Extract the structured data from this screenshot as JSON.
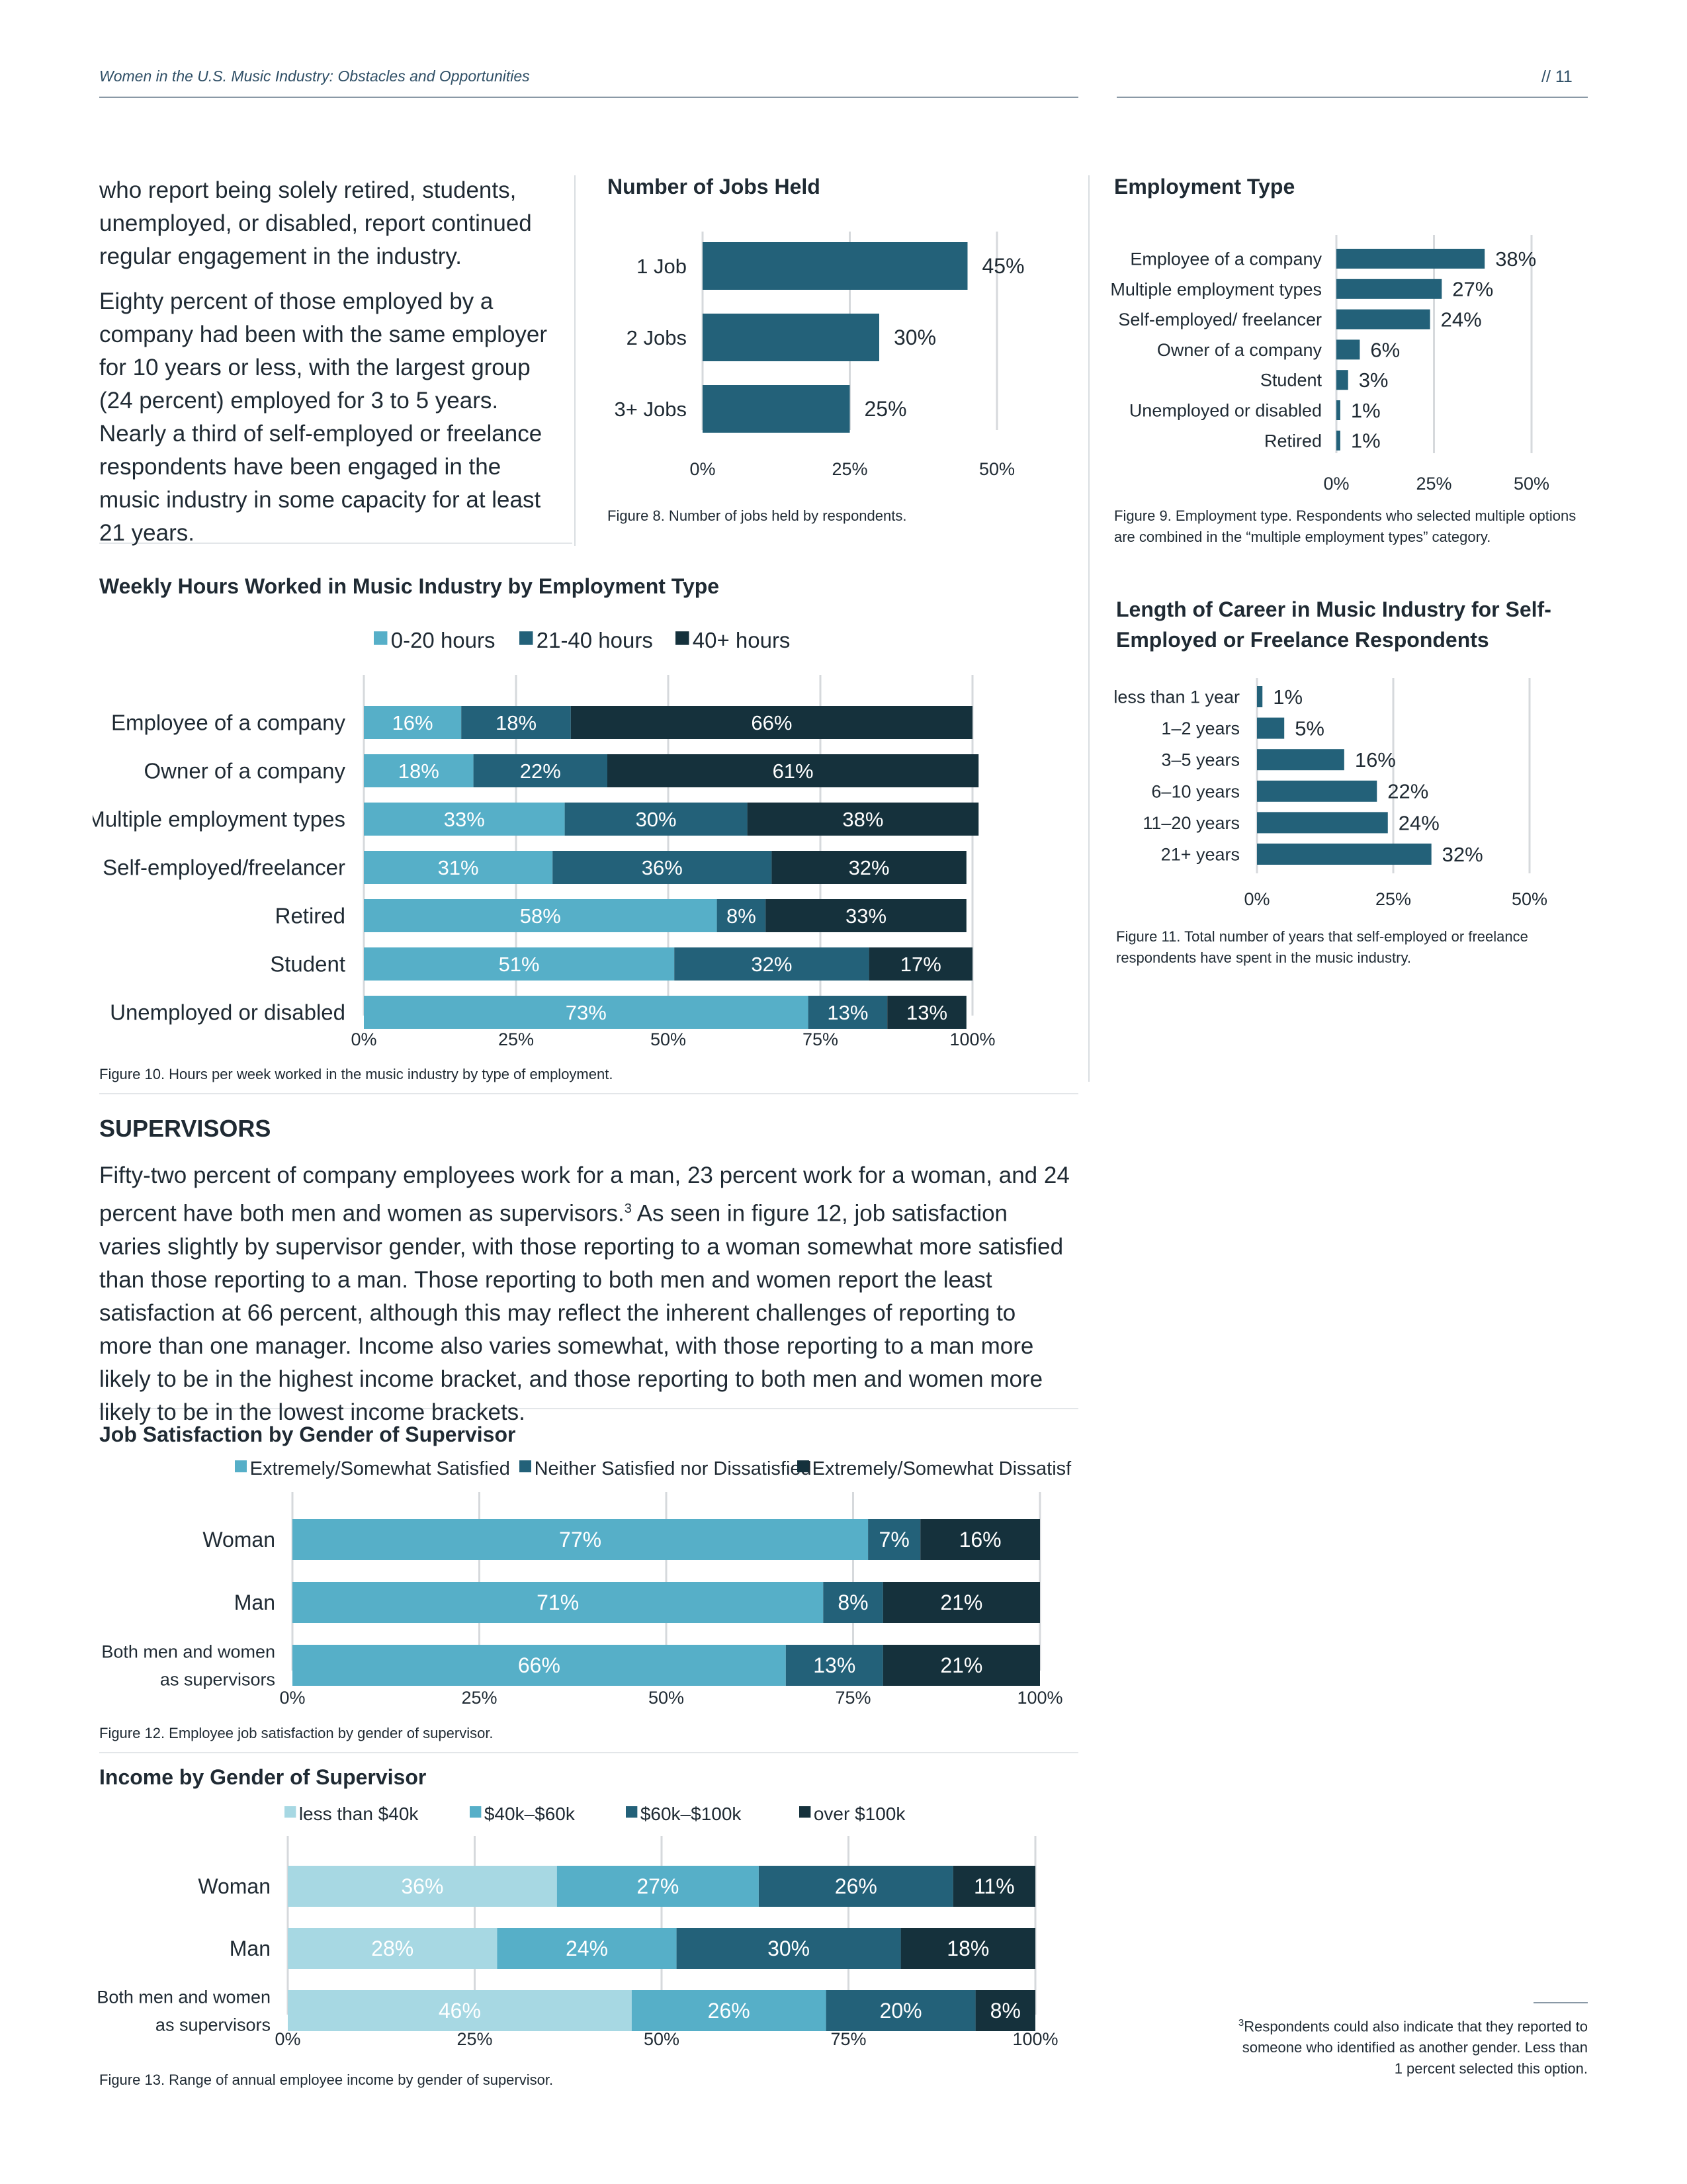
{
  "header": {
    "title": "Women in the U.S. Music Industry: Obstacles and Opportunities",
    "page": "// 11"
  },
  "intro": {
    "p1": "who report being solely retired, students, unemployed, or disabled, report continued regular engagement in the industry.",
    "p2": "Eighty percent of those employed by a company had been with the same employer for 10 years or less, with the largest group (24 percent) employed for 3 to 5 years. Nearly a third of self-employed or freelance respondents have been engaged in the music industry in some capacity for at least 21 years."
  },
  "fig8": {
    "title": "Number of Jobs Held",
    "caption": "Figure 8. Number of jobs held by respondents."
  },
  "fig9": {
    "title": "Employment Type",
    "caption": "Figure 9. Employment type. Respondents who selected multiple options are combined in the “multiple employment types” category."
  },
  "fig10": {
    "title": "Weekly Hours Worked in Music Industry by Employment Type",
    "caption": "Figure 10. Hours per week worked in the music industry by type of employment."
  },
  "fig11": {
    "title": "Length of Career in Music Industry for Self-Employed or Freelance Respondents",
    "caption": "Figure 11. Total number of years that self-employed or freelance respondents have spent in the music industry."
  },
  "supervisors": {
    "heading": "SUPERVISORS",
    "text_before": "Fifty-two percent of company employees work for a man, 23 percent work for a woman, and 24 percent have both men and women as supervisors.",
    "footnote_ref": "3",
    "text_after": " As seen in figure 12, job satisfaction varies slightly by supervisor gender, with those reporting to a woman somewhat more satisfied than those reporting to a man. Those reporting to both men and women report the least satisfaction at 66 percent, although this may reflect the inherent challenges of reporting to more than one manager. Income also varies somewhat, with those reporting to a man more likely to be in the highest income bracket, and those reporting to both men and women more likely to be in the lowest income brackets."
  },
  "fig12": {
    "title": "Job Satisfaction by Gender of Supervisor",
    "caption": "Figure 12. Employee job satisfaction by gender of supervisor."
  },
  "fig13": {
    "title": "Income by Gender of Supervisor",
    "caption": "Figure 13. Range of annual employee income by gender of supervisor."
  },
  "footnote": {
    "number": "3",
    "text": "Respondents could also indicate that they reported to someone who identified as another gender. Less than 1 percent selected this option."
  },
  "colors": {
    "light": "#a7d8e3",
    "mid_light": "#56afc8",
    "mid": "#236179",
    "dark": "#15313c",
    "single": "#236179"
  },
  "chart_data": [
    {
      "id": "fig8",
      "type": "bar",
      "orientation": "horizontal",
      "categories": [
        "1 Job",
        "2 Jobs",
        "3+ Jobs"
      ],
      "values": [
        45,
        30,
        25
      ],
      "value_labels": [
        "45%",
        "30%",
        "25%"
      ],
      "xlim": [
        0,
        50
      ],
      "ticks": [
        "0%",
        "25%",
        "50%"
      ]
    },
    {
      "id": "fig9",
      "type": "bar",
      "orientation": "horizontal",
      "categories": [
        "Employee of a company",
        "Multiple employment types",
        "Self-employed/ freelancer",
        "Owner of a company",
        "Student",
        "Unemployed or disabled",
        "Retired"
      ],
      "values": [
        38,
        27,
        24,
        6,
        3,
        1,
        1
      ],
      "value_labels": [
        "38%",
        "27%",
        "24%",
        "6%",
        "3%",
        "1%",
        "1%"
      ],
      "xlim": [
        0,
        50
      ],
      "ticks": [
        "0%",
        "25%",
        "50%"
      ]
    },
    {
      "id": "fig10",
      "type": "bar",
      "stacked": true,
      "orientation": "horizontal",
      "categories": [
        "Employee of a company",
        "Owner of a company",
        "Multiple employment types",
        "Self-employed/freelancer",
        "Retired",
        "Student",
        "Unemployed or disabled"
      ],
      "series": [
        {
          "name": "0-20 hours",
          "values": [
            16,
            18,
            33,
            31,
            58,
            51,
            73
          ]
        },
        {
          "name": "21-40 hours",
          "values": [
            18,
            22,
            30,
            36,
            8,
            32,
            13
          ]
        },
        {
          "name": "40+ hours",
          "values": [
            66,
            61,
            38,
            32,
            33,
            17,
            13
          ]
        }
      ],
      "xlim": [
        0,
        100
      ],
      "ticks": [
        "0%",
        "25%",
        "50%",
        "75%",
        "100%"
      ],
      "legend": "top"
    },
    {
      "id": "fig11",
      "type": "bar",
      "orientation": "horizontal",
      "categories": [
        "less than 1 year",
        "1–2 years",
        "3–5 years",
        "6–10 years",
        "11–20 years",
        "21+ years"
      ],
      "values": [
        1,
        5,
        16,
        22,
        24,
        32
      ],
      "value_labels": [
        "1%",
        "5%",
        "16%",
        "22%",
        "24%",
        "32%"
      ],
      "xlim": [
        0,
        50
      ],
      "ticks": [
        "0%",
        "25%",
        "50%"
      ]
    },
    {
      "id": "fig12",
      "type": "bar",
      "stacked": true,
      "orientation": "horizontal",
      "categories": [
        "Woman",
        "Man",
        "Both men and women|as supervisors"
      ],
      "series": [
        {
          "name": "Extremely/Somewhat Satisfied",
          "values": [
            77,
            71,
            66
          ]
        },
        {
          "name": "Neither Satisfied nor Dissatisfied",
          "values": [
            7,
            8,
            13
          ]
        },
        {
          "name": "Extremely/Somewhat Dissatisfied",
          "values": [
            16,
            21,
            21
          ]
        }
      ],
      "xlim": [
        0,
        100
      ],
      "ticks": [
        "0%",
        "25%",
        "50%",
        "75%",
        "100%"
      ],
      "legend": "top"
    },
    {
      "id": "fig13",
      "type": "bar",
      "stacked": true,
      "orientation": "horizontal",
      "categories": [
        "Woman",
        "Man",
        "Both men and women|as supervisors"
      ],
      "series": [
        {
          "name": "less than $40k",
          "values": [
            36,
            28,
            46
          ]
        },
        {
          "name": "$40k–$60k",
          "values": [
            27,
            24,
            26
          ]
        },
        {
          "name": "$60k–$100k",
          "values": [
            26,
            30,
            20
          ]
        },
        {
          "name": "over $100k",
          "values": [
            11,
            18,
            8
          ]
        }
      ],
      "xlim": [
        0,
        100
      ],
      "ticks": [
        "0%",
        "25%",
        "50%",
        "75%",
        "100%"
      ],
      "legend": "top"
    }
  ]
}
